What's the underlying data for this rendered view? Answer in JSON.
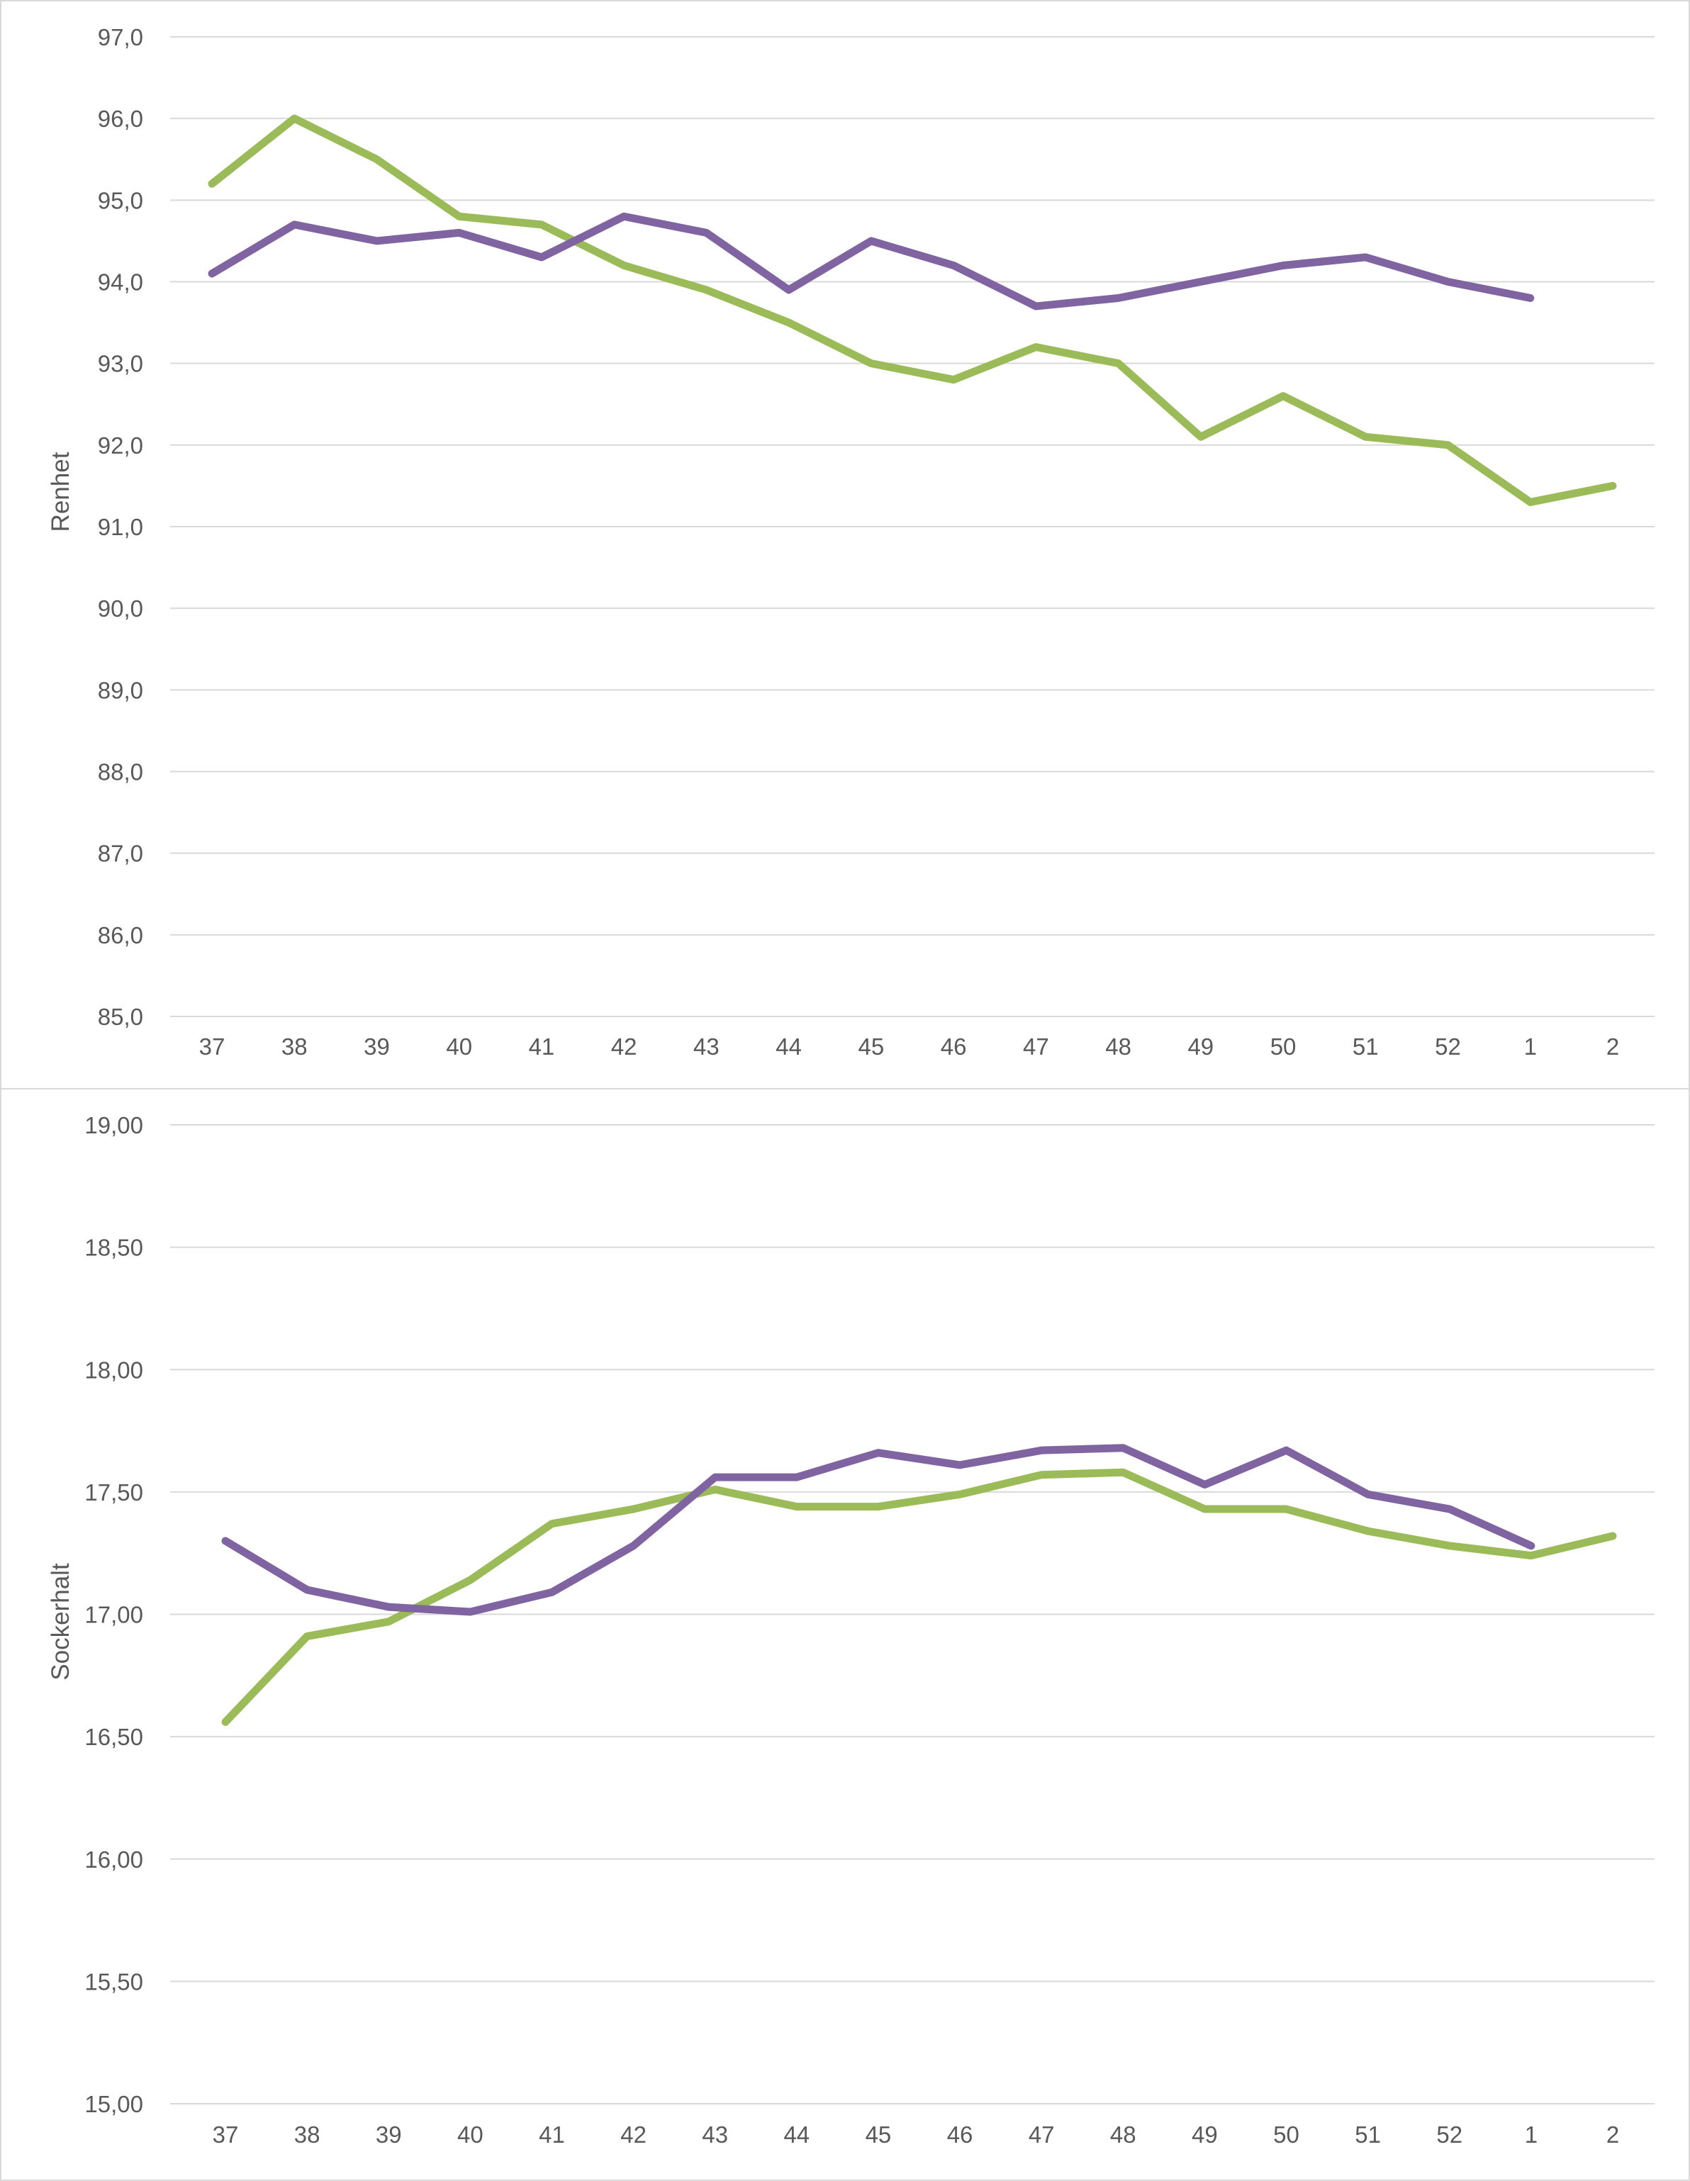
{
  "chart_data": [
    {
      "type": "line",
      "ylabel": "Renhet",
      "xlabel": "",
      "ylim": [
        85.0,
        97.0
      ],
      "y_ticks": [
        "85,0",
        "86,0",
        "87,0",
        "88,0",
        "89,0",
        "90,0",
        "91,0",
        "92,0",
        "93,0",
        "94,0",
        "95,0",
        "96,0",
        "97,0"
      ],
      "categories": [
        "37",
        "38",
        "39",
        "40",
        "41",
        "42",
        "43",
        "44",
        "45",
        "46",
        "47",
        "48",
        "49",
        "50",
        "51",
        "52",
        "1",
        "2"
      ],
      "grid": true,
      "series": [
        {
          "color": "#9bbb59",
          "values": [
            95.2,
            96.0,
            95.5,
            94.8,
            94.7,
            94.2,
            93.9,
            93.5,
            93.0,
            92.8,
            93.2,
            93.0,
            92.1,
            92.6,
            92.1,
            92.0,
            91.3,
            91.5
          ]
        },
        {
          "color": "#8064a2",
          "values": [
            94.1,
            94.7,
            94.5,
            94.6,
            94.3,
            94.8,
            94.6,
            93.9,
            94.5,
            94.2,
            93.7,
            93.8,
            94.0,
            94.2,
            94.3,
            94.0,
            93.8,
            null
          ]
        }
      ]
    },
    {
      "type": "line",
      "ylabel": "Sockerhalt",
      "xlabel": "",
      "ylim": [
        15.0,
        19.0
      ],
      "y_ticks": [
        "15,00",
        "15,50",
        "16,00",
        "16,50",
        "17,00",
        "17,50",
        "18,00",
        "18,50",
        "19,00"
      ],
      "categories": [
        "37",
        "38",
        "39",
        "40",
        "41",
        "42",
        "43",
        "44",
        "45",
        "46",
        "47",
        "48",
        "49",
        "50",
        "51",
        "52",
        "1",
        "2"
      ],
      "grid": true,
      "series": [
        {
          "color": "#9bbb59",
          "values": [
            16.56,
            16.91,
            16.97,
            17.14,
            17.37,
            17.43,
            17.51,
            17.44,
            17.44,
            17.49,
            17.57,
            17.58,
            17.43,
            17.43,
            17.34,
            17.28,
            17.24,
            17.32
          ]
        },
        {
          "color": "#8064a2",
          "values": [
            17.3,
            17.1,
            17.03,
            17.01,
            17.09,
            17.28,
            17.56,
            17.56,
            17.66,
            17.61,
            17.67,
            17.68,
            17.53,
            17.67,
            17.49,
            17.43,
            17.28,
            null
          ]
        }
      ]
    }
  ]
}
